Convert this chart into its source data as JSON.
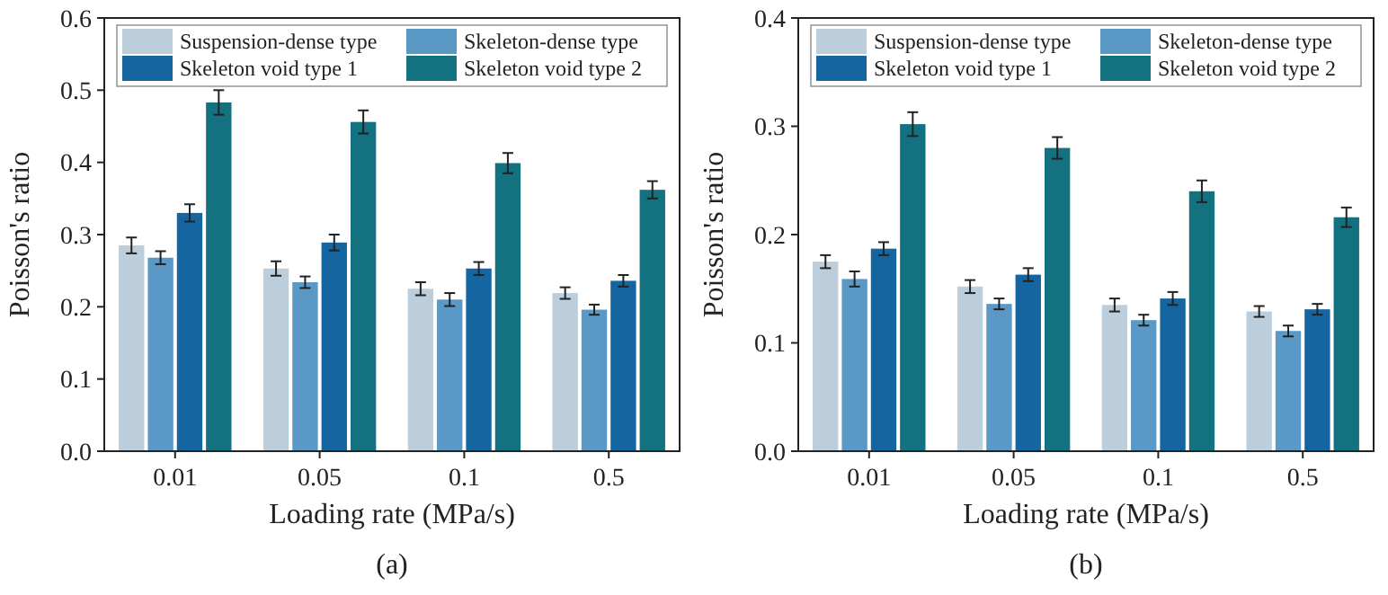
{
  "chart_data": [
    {
      "type": "bar",
      "xlabel": "Loading rate (MPa/s)",
      "ylabel": "Poisson's ratio",
      "categories": [
        "0.01",
        "0.05",
        "0.1",
        "0.5"
      ],
      "ylim": [
        0,
        0.6
      ],
      "yticks": [
        {
          "value": 0,
          "label": "0.0"
        },
        0.1,
        0.2,
        0.3,
        0.4,
        0.5,
        0.6
      ],
      "legend": "top",
      "annotations": [
        "(a)"
      ],
      "series": [
        {
          "name": "Suspension-dense type",
          "color": "#bccddb",
          "values": [
            0.285,
            0.253,
            0.225,
            0.219
          ],
          "errors": [
            0.011,
            0.01,
            0.009,
            0.008
          ]
        },
        {
          "name": "Skeleton-dense type",
          "color": "#5a98c6",
          "values": [
            0.268,
            0.234,
            0.21,
            0.196
          ],
          "errors": [
            0.009,
            0.008,
            0.009,
            0.007
          ]
        },
        {
          "name": "Skeleton void type 1",
          "color": "#1565a0",
          "values": [
            0.33,
            0.289,
            0.253,
            0.236
          ],
          "errors": [
            0.012,
            0.011,
            0.009,
            0.008
          ]
        },
        {
          "name": "Skeleton void type 2",
          "color": "#137180",
          "values": [
            0.483,
            0.456,
            0.399,
            0.362
          ],
          "errors": [
            0.017,
            0.016,
            0.014,
            0.012
          ]
        }
      ]
    },
    {
      "type": "bar",
      "xlabel": "Loading rate (MPa/s)",
      "ylabel": "Poisson's ratio",
      "categories": [
        "0.01",
        "0.05",
        "0.1",
        "0.5"
      ],
      "ylim": [
        0,
        0.4
      ],
      "yticks": [
        {
          "value": 0,
          "label": "0.0"
        },
        0.1,
        0.2,
        0.3,
        0.4
      ],
      "legend": "top",
      "annotations": [
        "(b)"
      ],
      "series": [
        {
          "name": "Suspension-dense type",
          "color": "#bccddb",
          "values": [
            0.175,
            0.152,
            0.135,
            0.129
          ],
          "errors": [
            0.006,
            0.006,
            0.006,
            0.005
          ]
        },
        {
          "name": "Skeleton-dense type",
          "color": "#5a98c6",
          "values": [
            0.159,
            0.136,
            0.121,
            0.111
          ],
          "errors": [
            0.007,
            0.005,
            0.005,
            0.005
          ]
        },
        {
          "name": "Skeleton void type 1",
          "color": "#1565a0",
          "values": [
            0.187,
            0.163,
            0.141,
            0.131
          ],
          "errors": [
            0.006,
            0.006,
            0.006,
            0.005
          ]
        },
        {
          "name": "Skeleton void type 2",
          "color": "#137180",
          "values": [
            0.302,
            0.28,
            0.24,
            0.216
          ],
          "errors": [
            0.011,
            0.01,
            0.01,
            0.009
          ]
        }
      ]
    }
  ]
}
